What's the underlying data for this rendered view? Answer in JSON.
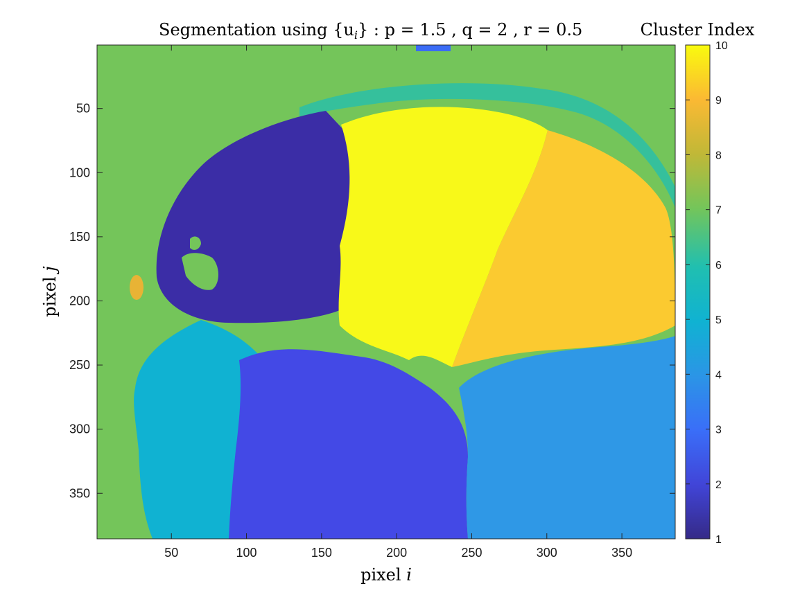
{
  "chart_data": {
    "type": "heatmap",
    "title": "Segmentation using {u_i} : p = 1.5 , q = 2 , r = 0.5",
    "title_main": "Segmentation using ",
    "title_set": "{u",
    "title_sub": "i",
    "title_set_close": "}",
    "title_params": " : p = 1.5 , q = 2 , r = 0.5",
    "xlabel": "pixel ",
    "xlabel_var": "i",
    "ylabel": "pixel ",
    "ylabel_var": "j",
    "xlim": [
      0.5,
      385.5
    ],
    "ylim": [
      0.5,
      385.5
    ],
    "y_reversed": true,
    "x_ticks": [
      50,
      100,
      150,
      200,
      250,
      300,
      350
    ],
    "y_ticks": [
      50,
      100,
      150,
      200,
      250,
      300,
      350
    ],
    "grid": false,
    "colorbar": {
      "title": "Cluster Index",
      "range": [
        1,
        10
      ],
      "ticks": [
        1,
        2,
        3,
        4,
        5,
        6,
        7,
        8,
        9,
        10
      ],
      "colormap": "parula"
    },
    "regions": [
      {
        "cluster": 7,
        "color": "#74c55a",
        "role": "background"
      },
      {
        "cluster": 6,
        "color": "#35c09c",
        "role": "outer scalp band"
      },
      {
        "cluster": 1,
        "color": "#3b2da6",
        "role": "left brain region"
      },
      {
        "cluster": 10,
        "color": "#f8f919",
        "role": "central brain region"
      },
      {
        "cluster": 9,
        "color": "#fbca30",
        "role": "right brain region"
      },
      {
        "cluster": 5,
        "color": "#10b2d2",
        "role": "lower-left face region"
      },
      {
        "cluster": 2,
        "color": "#4349e6",
        "role": "lower-middle region"
      },
      {
        "cluster": 4,
        "color": "#2f98e6",
        "role": "lower-right region"
      },
      {
        "cluster": 3,
        "color": "#3b6cf5",
        "role": "small top patch"
      },
      {
        "cluster": 8,
        "color": "#e8b335",
        "role": "small left spot"
      }
    ]
  }
}
